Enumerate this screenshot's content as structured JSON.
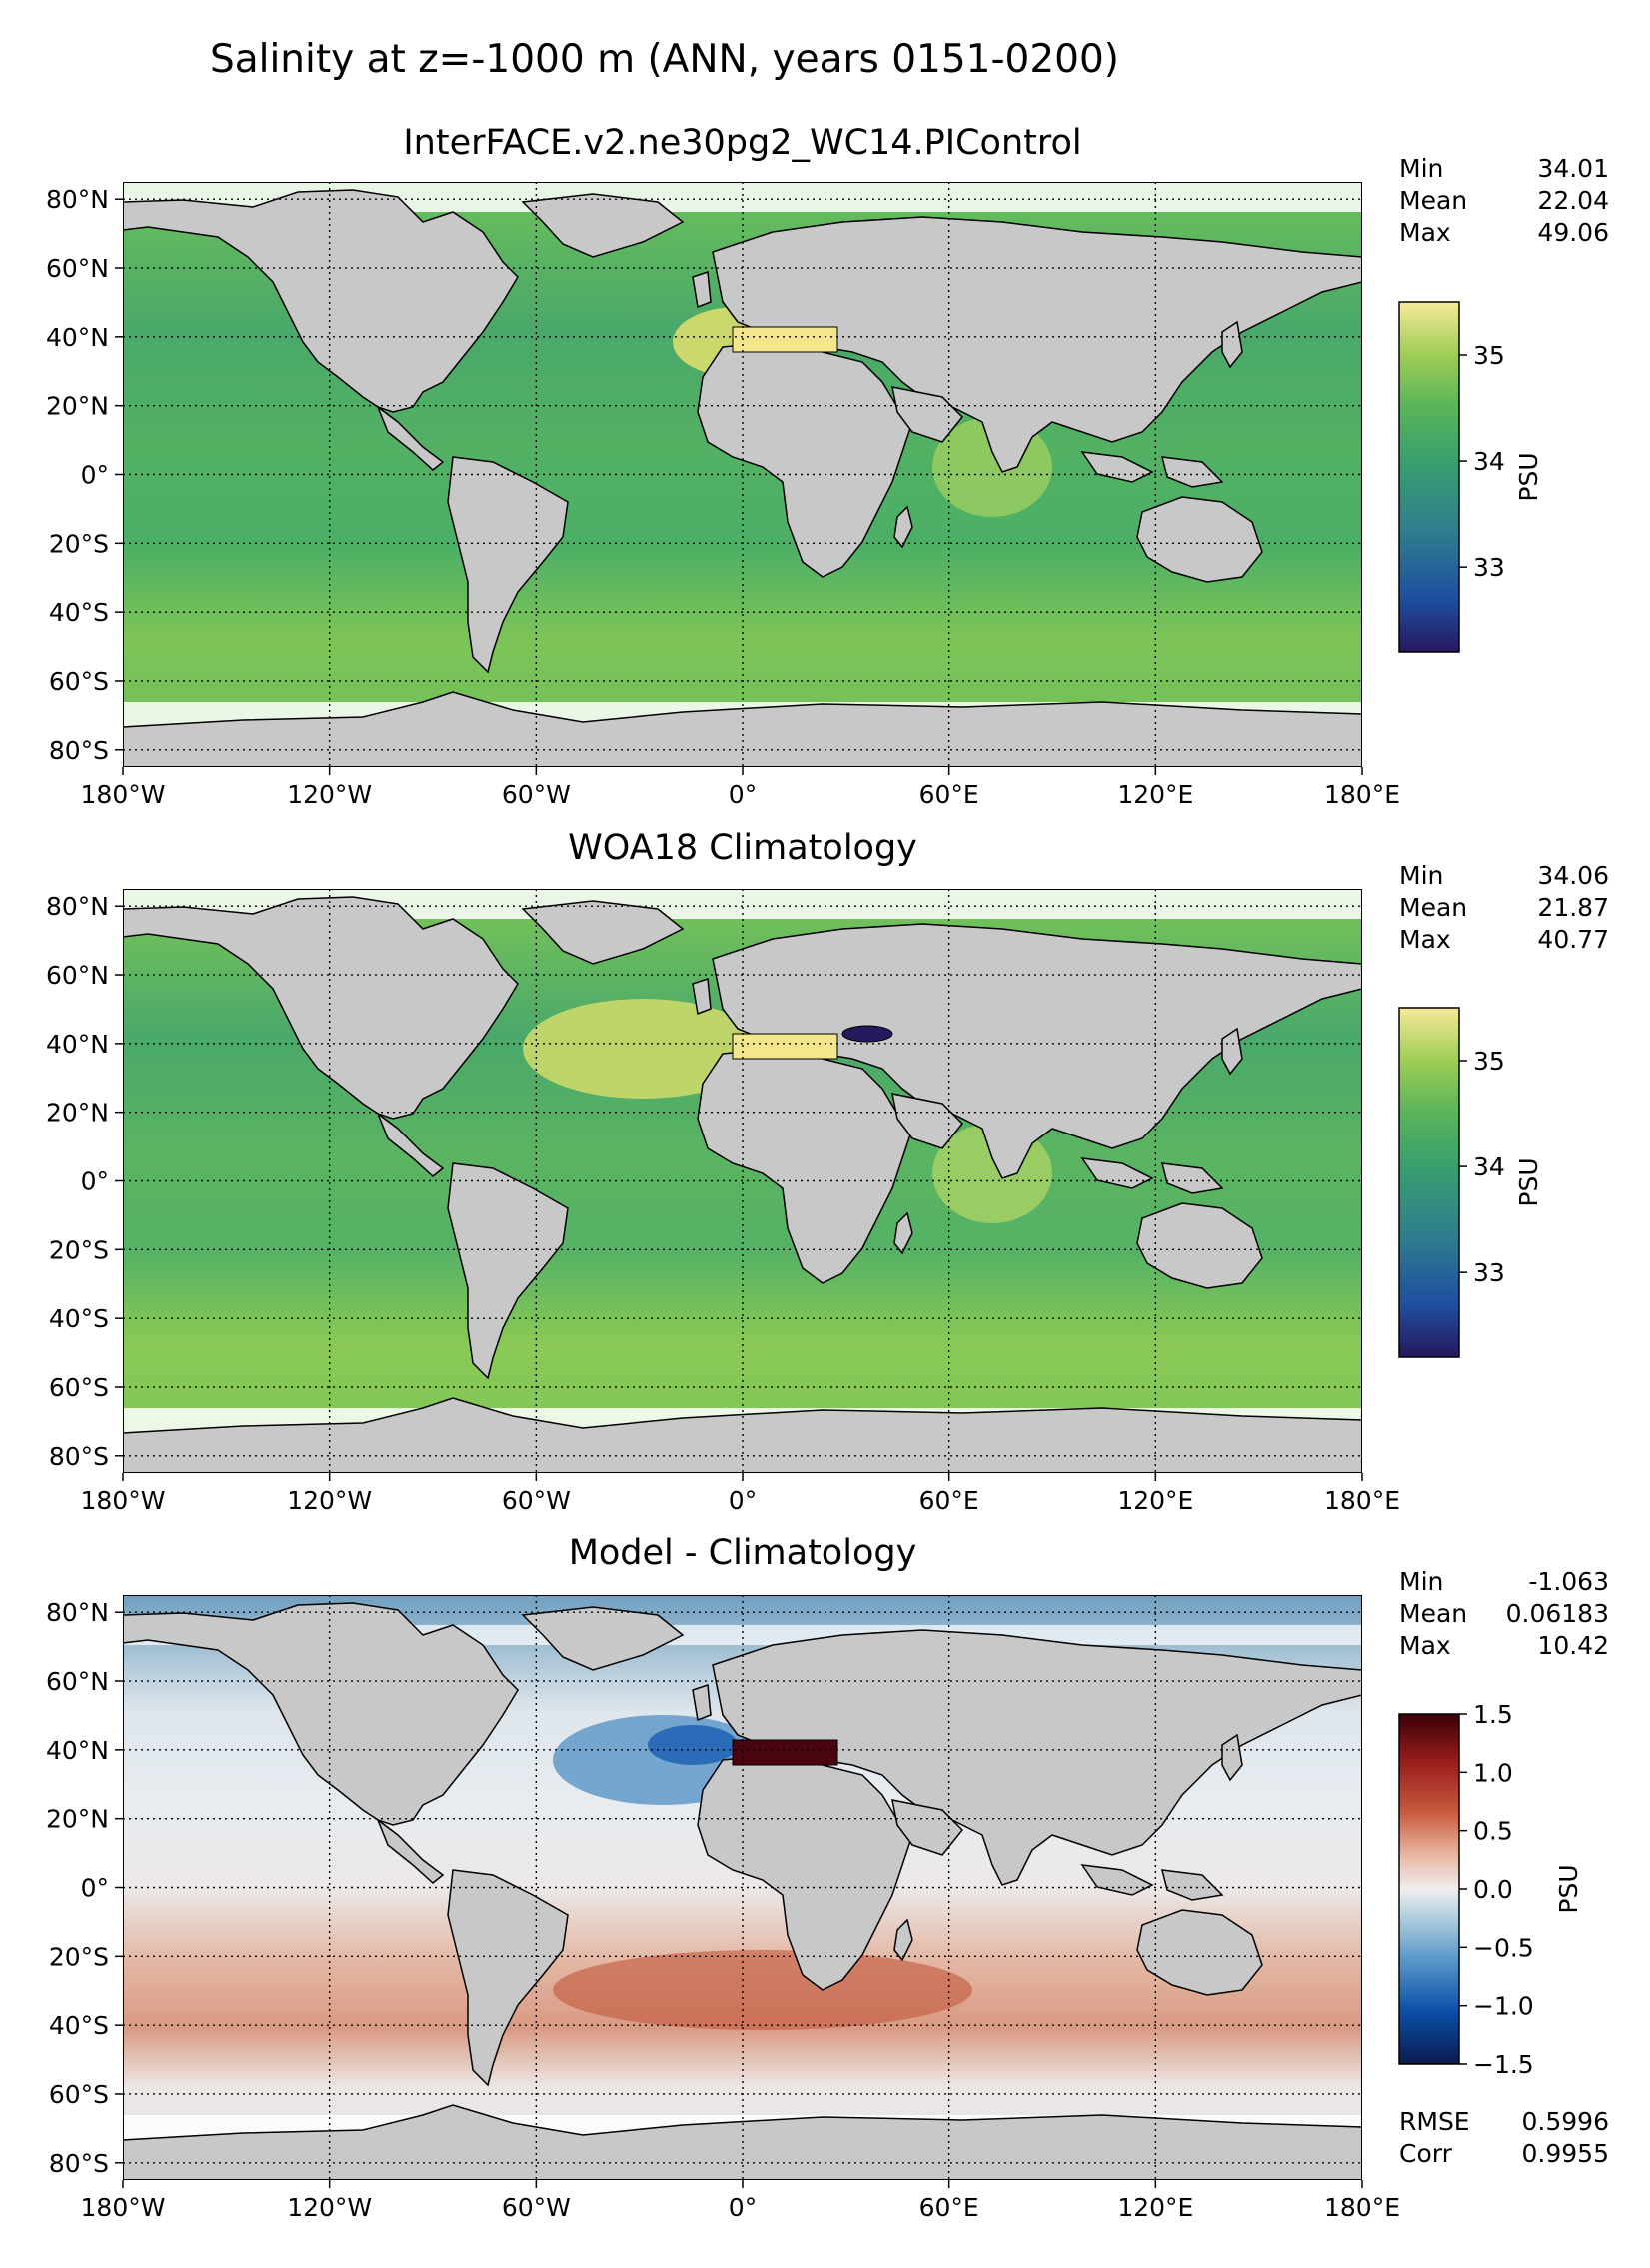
{
  "figure": {
    "suptitle": "Salinity at z=-1000 m (ANN, years 0151-0200)"
  },
  "colors": {
    "land": "#c8c8c8",
    "no_data": "#ffffff",
    "salinity_colormap": [
      "#26185f",
      "#1f4ea0",
      "#2f7f8c",
      "#3aa06e",
      "#59b45a",
      "#9fcd55",
      "#dfe27a",
      "#f5ea9a"
    ],
    "diff_colormap": [
      "#0a1b4d",
      "#0a4fa8",
      "#5b98c8",
      "#b8d2e0",
      "#f0eeee",
      "#e8b5a0",
      "#c85a3e",
      "#9a1e1e",
      "#3b0009"
    ]
  },
  "axes": {
    "x_ticks": [
      "180°W",
      "120°W",
      "60°W",
      "0°",
      "60°E",
      "120°E",
      "180°E"
    ],
    "y_ticks": [
      "80°N",
      "60°N",
      "40°N",
      "20°N",
      "0°",
      "20°S",
      "40°S",
      "60°S",
      "80°S"
    ]
  },
  "panels": [
    {
      "title": "InterFACE.v2.ne30pg2_WC14.PIControl",
      "stats": [
        {
          "label": "Min",
          "value": "34.01"
        },
        {
          "label": "Mean",
          "value": "22.04"
        },
        {
          "label": "Max",
          "value": "49.06"
        }
      ],
      "colorbar": {
        "label": "PSU",
        "ticks": [
          "35",
          "34",
          "33"
        ],
        "range": [
          32.2,
          35.5
        ],
        "tick_values": [
          35,
          34,
          33
        ]
      }
    },
    {
      "title": "WOA18 Climatology",
      "stats": [
        {
          "label": "Min",
          "value": "34.06"
        },
        {
          "label": "Mean",
          "value": "21.87"
        },
        {
          "label": "Max",
          "value": "40.77"
        }
      ],
      "colorbar": {
        "label": "PSU",
        "ticks": [
          "35",
          "34",
          "33"
        ],
        "range": [
          32.2,
          35.5
        ],
        "tick_values": [
          35,
          34,
          33
        ]
      }
    },
    {
      "title": "Model - Climatology",
      "stats": [
        {
          "label": "Min",
          "value": "-1.063"
        },
        {
          "label": "Mean",
          "value": "0.06183"
        },
        {
          "label": "Max",
          "value": "10.42"
        }
      ],
      "extra_stats": [
        {
          "label": "RMSE",
          "value": "0.5996"
        },
        {
          "label": "Corr",
          "value": "0.9955"
        }
      ],
      "colorbar": {
        "label": "PSU",
        "ticks": [
          "1.5",
          "1.0",
          "0.5",
          "0.0",
          "−0.5",
          "−1.0",
          "−1.5"
        ],
        "range": [
          -1.5,
          1.5
        ],
        "tick_values": [
          1.5,
          1.0,
          0.5,
          0.0,
          -0.5,
          -1.0,
          -1.5
        ]
      }
    }
  ]
}
